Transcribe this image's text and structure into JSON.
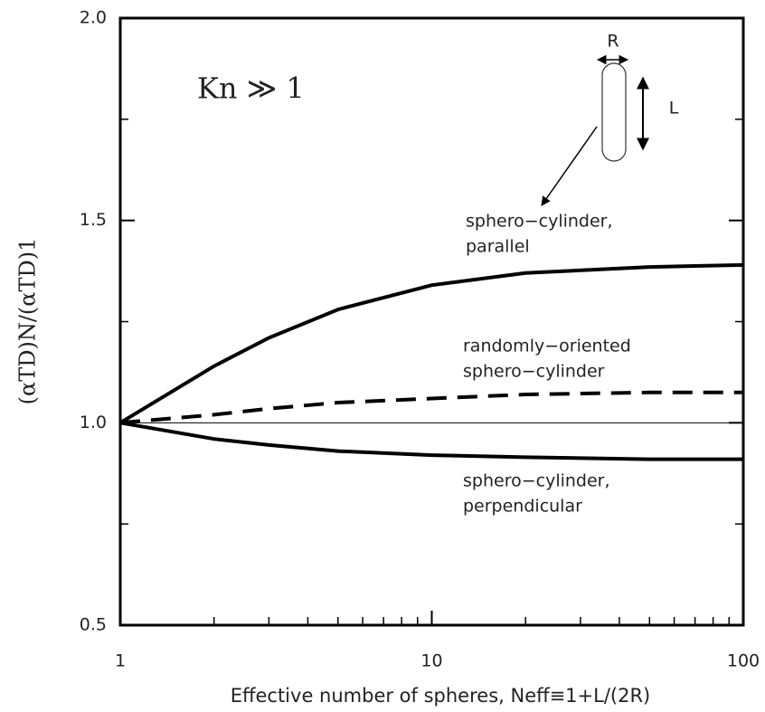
{
  "chart_data": {
    "type": "line",
    "xlabel": "Effective number of spheres, Neff≡1+L/(2R)",
    "ylabel": "(αTD)N/(αTD)1",
    "annotation": "Kn ≫ 1",
    "inset_labels": [
      "R",
      "L"
    ],
    "log_x": true,
    "xlim": [
      1,
      100
    ],
    "xticks": [
      1,
      10,
      100
    ],
    "xminor": [
      2,
      3,
      4,
      5,
      6,
      7,
      8,
      9,
      20,
      30,
      40,
      50,
      60,
      70,
      80,
      90
    ],
    "ylim": [
      0.5,
      2.0
    ],
    "yticks": [
      0.5,
      {
        "value": 1,
        "label": "1.0"
      },
      1.5,
      {
        "value": 2,
        "label": "2.0"
      }
    ],
    "yminor": [
      0.75,
      1.25,
      1.75
    ],
    "reference_line": 1,
    "x": [
      1,
      2,
      3,
      5,
      10,
      20,
      50,
      100
    ],
    "series": [
      {
        "label": [
          "sphero−cylinder,",
          "parallel"
        ],
        "color": "#000000",
        "dash": false,
        "values": [
          1.0,
          1.14,
          1.21,
          1.28,
          1.34,
          1.37,
          1.385,
          1.39
        ]
      },
      {
        "label": [
          "randomly−oriented",
          "sphero−cylinder"
        ],
        "color": "#000000",
        "dash": true,
        "values": [
          1.0,
          1.02,
          1.035,
          1.05,
          1.06,
          1.07,
          1.075,
          1.075
        ]
      },
      {
        "label": [
          "sphero−cylinder,",
          "perpendicular"
        ],
        "color": "#000000",
        "dash": false,
        "values": [
          1.0,
          0.96,
          0.945,
          0.93,
          0.92,
          0.915,
          0.91,
          0.91
        ]
      }
    ]
  }
}
